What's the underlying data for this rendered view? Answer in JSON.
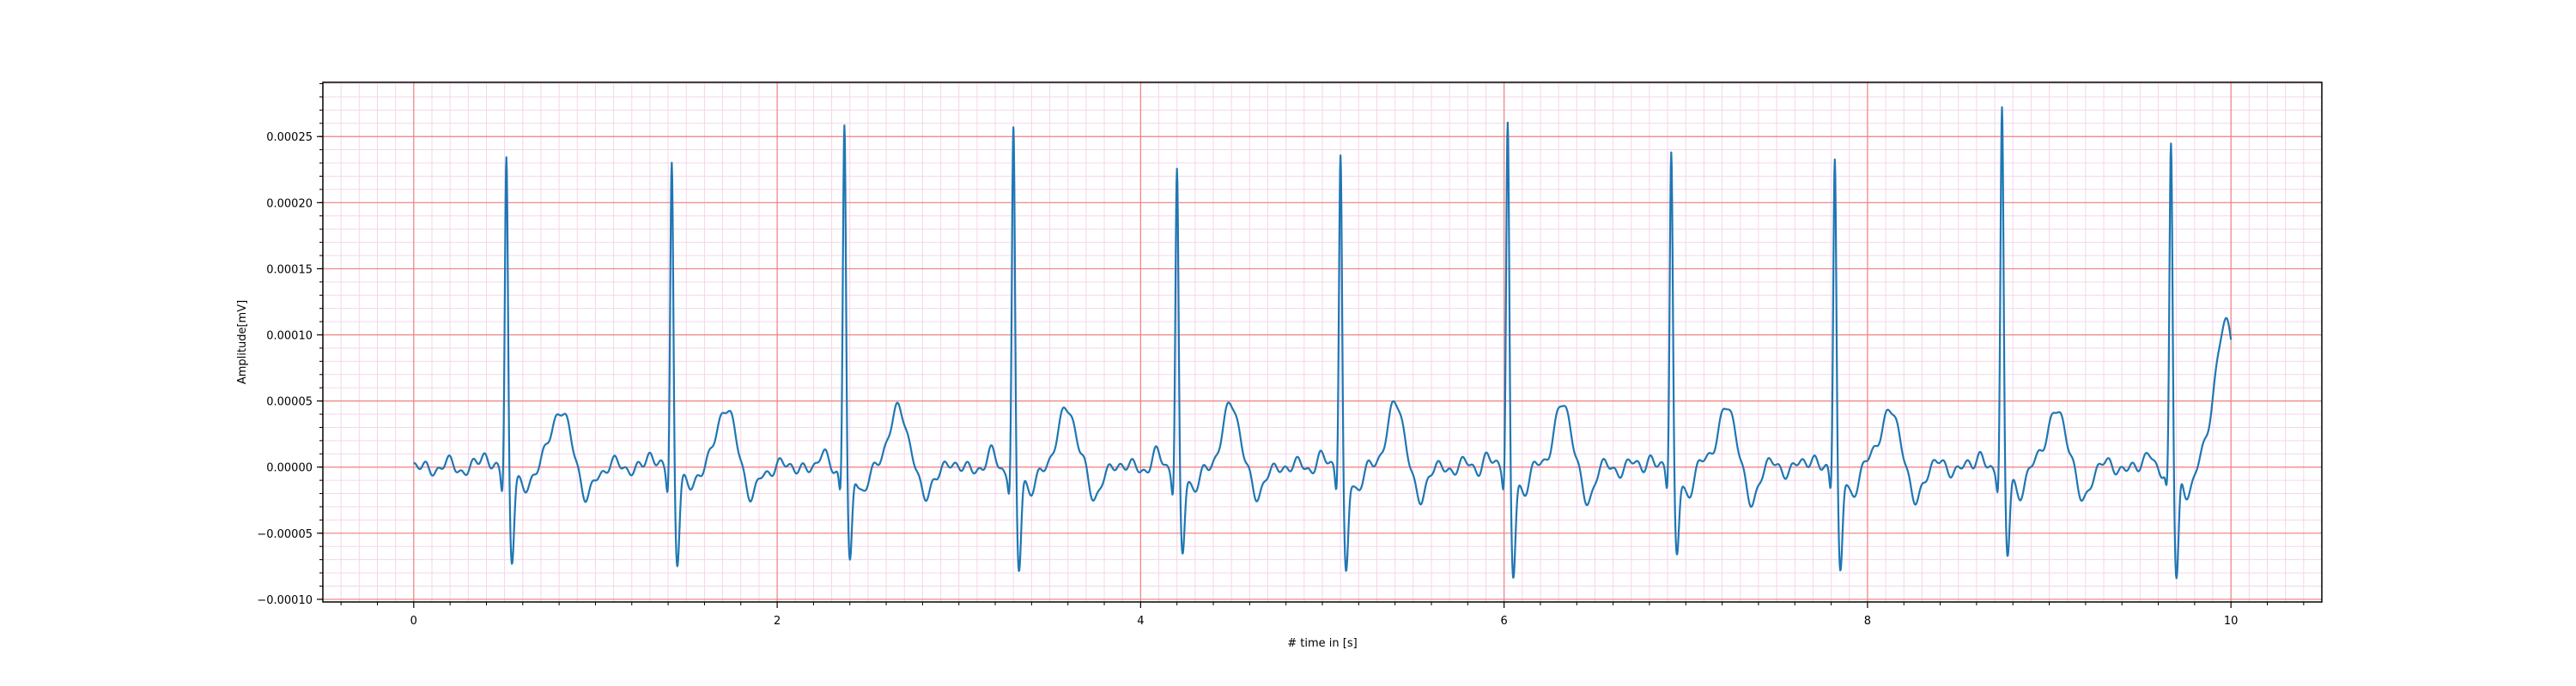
{
  "chart_data": {
    "type": "line",
    "title": "",
    "xlabel": "# time in [s]",
    "ylabel": "Amplitude[mV]",
    "xlim": [
      -0.5,
      10.5
    ],
    "ylim": [
      -0.000102,
      0.000291
    ],
    "x_ticks": [
      0,
      2,
      4,
      6,
      8,
      10
    ],
    "x_tick_labels": [
      "0",
      "2",
      "4",
      "6",
      "8",
      "10"
    ],
    "y_ticks": [
      -0.0001,
      -5e-05,
      0.0,
      5e-05,
      0.0001,
      0.00015,
      0.0002,
      0.00025
    ],
    "y_tick_labels": [
      "−0.00010",
      "−0.00005",
      "0.00000",
      "0.00005",
      "0.00010",
      "0.00015",
      "0.00020",
      "0.00025"
    ],
    "grid": "major and minor (ECG paper style)",
    "colors": {
      "line": "#1f77b4",
      "major_grid": "#f08080",
      "minor_grid": "#f5d5ea",
      "axes": "#000000"
    },
    "series": [
      {
        "values_note": "sampled ECG waveform",
        "beats": [
          {
            "r_peak_time": 0.51,
            "r_peak": 0.00024,
            "s_min": -6.6e-05
          },
          {
            "r_peak_time": 1.42,
            "r_peak": 0.000237,
            "s_min": -6.5e-05
          },
          {
            "r_peak_time": 2.37,
            "r_peak": 0.000267,
            "s_min": -7.1e-05
          },
          {
            "r_peak_time": 3.3,
            "r_peak": 0.000258,
            "s_min": -7.4e-05
          },
          {
            "r_peak_time": 4.2,
            "r_peak": 0.000231,
            "s_min": -6e-05
          },
          {
            "r_peak_time": 5.1,
            "r_peak": 0.000244,
            "s_min": -7.3e-05
          },
          {
            "r_peak_time": 6.02,
            "r_peak": 0.000263,
            "s_min": -7.5e-05
          },
          {
            "r_peak_time": 6.92,
            "r_peak": 0.00024,
            "s_min": -6.1e-05
          },
          {
            "r_peak_time": 7.82,
            "r_peak": 0.000238,
            "s_min": -7.7e-05
          },
          {
            "r_peak_time": 8.74,
            "r_peak": 0.000273,
            "s_min": -6.4e-05
          },
          {
            "r_peak_time": 9.67,
            "r_peak": 0.000246,
            "s_min": -8.2e-05
          }
        ]
      }
    ]
  }
}
